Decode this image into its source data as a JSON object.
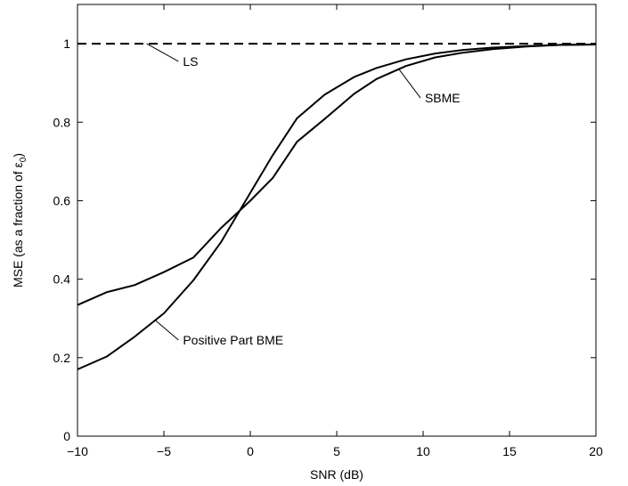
{
  "chart_data": {
    "type": "line",
    "title": "",
    "xlabel": "SNR (dB)",
    "ylabel": "MSE (as a fraction of ε",
    "ylabel_subscript": "0",
    "ylabel_close": ")",
    "xlim": [
      -10,
      20
    ],
    "ylim": [
      0,
      1.1
    ],
    "xticks": [
      -10,
      -5,
      0,
      5,
      10,
      15,
      20
    ],
    "xtick_labels": [
      "−10",
      "−5",
      "0",
      "5",
      "10",
      "15",
      "20"
    ],
    "yticks": [
      0,
      0.2,
      0.4,
      0.6,
      0.8,
      1
    ],
    "ytick_labels": [
      "0",
      "0.2",
      "0.4",
      "0.6",
      "0.8",
      "1"
    ],
    "grid": false,
    "legend": "none",
    "series": [
      {
        "key": "ls",
        "dashed": true,
        "x": [
          -10,
          20
        ],
        "y": [
          1.0,
          1.0
        ]
      },
      {
        "key": "sbme",
        "dashed": false,
        "x": [
          -10,
          -8.3,
          -6.7,
          -5.0,
          -3.3,
          -1.7,
          0,
          1.3,
          2.7,
          4.3,
          6.0,
          7.3,
          9.0,
          10.7,
          12.3,
          14.0,
          16.0,
          18.0,
          20.0
        ],
        "y": [
          0.334,
          0.367,
          0.385,
          0.418,
          0.455,
          0.53,
          0.6,
          0.658,
          0.75,
          0.808,
          0.872,
          0.91,
          0.943,
          0.965,
          0.977,
          0.986,
          0.993,
          0.997,
          0.998
        ]
      },
      {
        "key": "ppbme",
        "dashed": false,
        "x": [
          -10,
          -8.3,
          -6.7,
          -5.0,
          -3.3,
          -1.7,
          0,
          1.3,
          2.7,
          4.3,
          6.0,
          7.3,
          9.0,
          10.7,
          12.3,
          14.0,
          16.0,
          18.0,
          20.0
        ],
        "y": [
          0.17,
          0.203,
          0.253,
          0.313,
          0.397,
          0.494,
          0.62,
          0.716,
          0.81,
          0.87,
          0.915,
          0.938,
          0.96,
          0.975,
          0.984,
          0.99,
          0.994,
          0.997,
          0.998
        ]
      }
    ],
    "annotations": [
      {
        "text": "LS",
        "series": "ls",
        "at_x": -6.0,
        "label_x": -3.9,
        "label_y": 0.955
      },
      {
        "text": "SBME",
        "series": "sbme",
        "at_x": 8.6,
        "label_x": 10.1,
        "label_y": 0.862
      },
      {
        "text": "Positive Part BME",
        "series": "ppbme",
        "at_x": -5.5,
        "label_x": -3.9,
        "label_y": 0.245
      }
    ]
  }
}
